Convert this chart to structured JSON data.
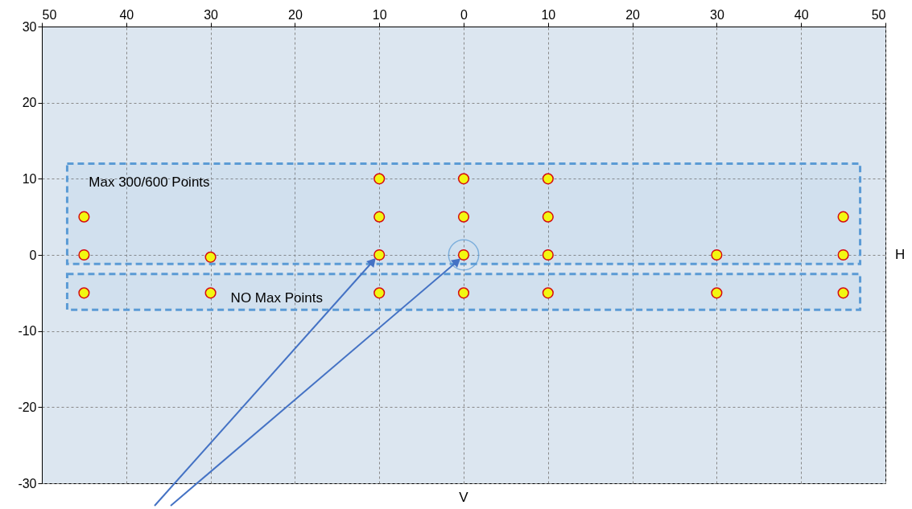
{
  "chart_data": {
    "type": "scatter",
    "xlabel": "V",
    "x": [
      -45,
      -45,
      -45,
      -30,
      -30,
      -10,
      -10,
      -10,
      -10,
      0,
      0,
      0,
      0,
      10,
      10,
      10,
      10,
      30,
      30,
      45,
      45,
      45
    ],
    "values": [
      5,
      0,
      -5,
      -0.3,
      -5,
      10,
      5,
      0,
      -5,
      10,
      5,
      0,
      -5,
      10,
      5,
      0,
      -5,
      0,
      -5,
      5,
      0,
      -5
    ],
    "color": "#ffff00",
    "marker": "circle",
    "xlim": [
      -50,
      50
    ],
    "ylim": [
      -30,
      30
    ],
    "xticks": [
      {
        "value": -50,
        "label": "50"
      },
      {
        "value": -40,
        "label": "40"
      },
      {
        "value": -30,
        "label": "30"
      },
      {
        "value": -20,
        "label": "20"
      },
      {
        "value": -10,
        "label": "10"
      },
      0,
      10,
      20,
      30,
      40,
      50
    ],
    "yticks": [
      -30,
      -20,
      -10,
      0,
      10,
      20,
      30
    ],
    "grid": true,
    "bands": [
      {
        "axis": "y",
        "from": -1.2,
        "to": 12,
        "label": "Max 300/600 Points",
        "color": "#5b9bd5"
      },
      {
        "axis": "y",
        "from": -7.2,
        "to": -2.5,
        "label": "NO Max Points",
        "color": "#5b9bd5"
      }
    ],
    "annotations": [
      "H"
    ]
  }
}
